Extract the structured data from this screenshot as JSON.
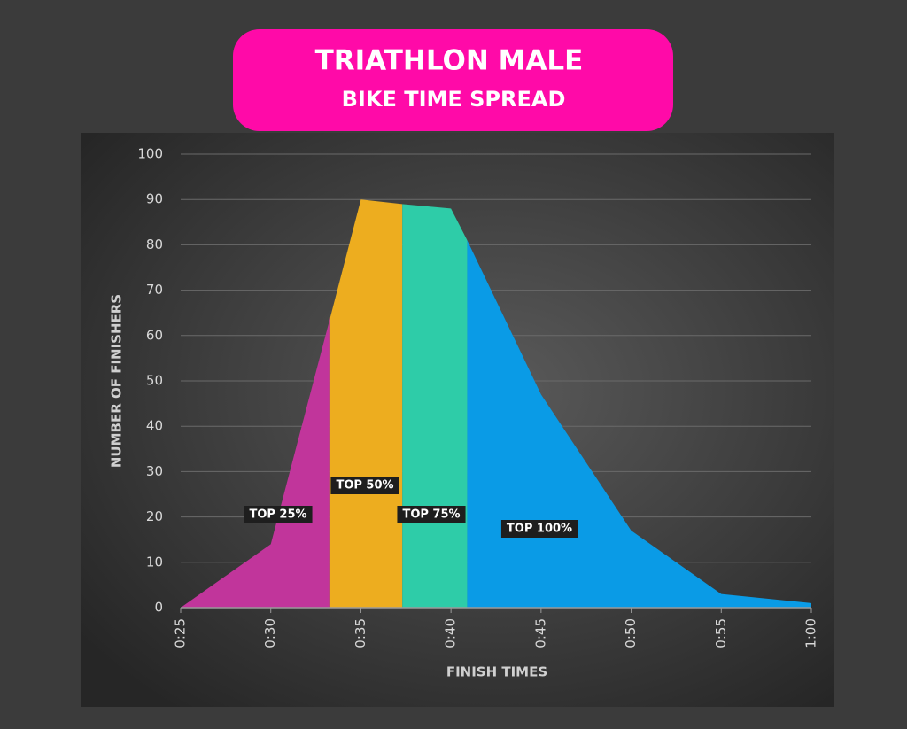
{
  "chart_data": {
    "type": "area",
    "title": "TRIATHLON MALE",
    "subtitle": "BIKE TIME SPREAD",
    "x_label": "FINISH TIMES",
    "y_label": "NUMBER OF FINISHERS",
    "xlim": [
      25,
      60
    ],
    "xticks": [
      {
        "value": 25,
        "label": "0:25"
      },
      {
        "value": 30,
        "label": "0:30"
      },
      {
        "value": 35,
        "label": "0:35"
      },
      {
        "value": 40,
        "label": "0:40"
      },
      {
        "value": 45,
        "label": "0:45"
      },
      {
        "value": 50,
        "label": "0:50"
      },
      {
        "value": 55,
        "label": "0:55"
      },
      {
        "value": 60,
        "label": "1:00"
      }
    ],
    "ylim": [
      0,
      100
    ],
    "yticks": [
      0,
      10,
      20,
      30,
      40,
      50,
      60,
      70,
      80,
      90,
      100
    ],
    "grid": true,
    "series": [
      {
        "name": "TOP 25%",
        "color": "#c1359b",
        "x": [
          25,
          30,
          33.3
        ],
        "values": [
          0,
          14,
          64
        ]
      },
      {
        "name": "TOP 50%",
        "color": "#edad1f",
        "x": [
          33.3,
          35,
          37.3
        ],
        "values": [
          64,
          90,
          89
        ]
      },
      {
        "name": "TOP 75%",
        "color": "#2ecca8",
        "x": [
          37.3,
          40,
          40.9
        ],
        "values": [
          89,
          88,
          81
        ]
      },
      {
        "name": "TOP 100%",
        "color": "#0a9be6",
        "x": [
          40.9,
          45,
          50,
          55,
          60
        ],
        "values": [
          81,
          47,
          17,
          3,
          1
        ]
      }
    ]
  }
}
